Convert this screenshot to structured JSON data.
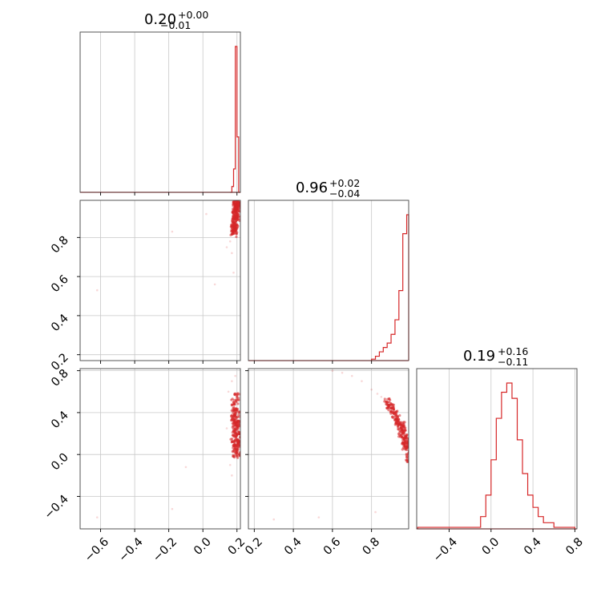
{
  "chart_data": {
    "type": "scatter",
    "subtype": "corner-plot",
    "parameters": 3,
    "color": "#d62728",
    "grid": true,
    "titles": [
      {
        "value": "0.20",
        "plus": "+0.00",
        "minus": "−0.01"
      },
      {
        "value": "0.96",
        "plus": "+0.02",
        "minus": "−0.04"
      },
      {
        "value": "0.19",
        "plus": "+0.16",
        "minus": "−0.11"
      }
    ],
    "ranges": [
      [
        -0.72,
        0.22
      ],
      [
        0.17,
        0.99
      ],
      [
        -0.71,
        0.82
      ]
    ],
    "ticks": [
      {
        "values": [
          -0.6,
          -0.4,
          -0.2,
          0.0,
          0.2
        ],
        "labels": [
          "−0.6",
          "−0.4",
          "−0.2",
          "0.0",
          "0.2"
        ]
      },
      {
        "values": [
          0.2,
          0.4,
          0.6,
          0.8
        ],
        "labels": [
          "0.2",
          "0.4",
          "0.6",
          "0.8"
        ]
      },
      {
        "values": [
          -0.4,
          0.0,
          0.4,
          0.8
        ],
        "labels": [
          "−0.4",
          "0.0",
          "0.4",
          "0.8"
        ]
      }
    ],
    "histograms": [
      {
        "bin_edges": [
          0.16,
          0.17,
          0.18,
          0.19,
          0.2,
          0.21,
          0.22
        ],
        "values": [
          0.0,
          0.04,
          0.16,
          1.0,
          0.38,
          0.0
        ]
      },
      {
        "bin_edges": [
          0.8,
          0.82,
          0.84,
          0.86,
          0.88,
          0.9,
          0.92,
          0.94,
          0.96,
          0.98,
          0.99
        ],
        "values": [
          0.01,
          0.03,
          0.06,
          0.09,
          0.12,
          0.18,
          0.28,
          0.48,
          0.87,
          1.0
        ]
      },
      {
        "bin_edges": [
          -0.7,
          -0.1,
          -0.05,
          0.0,
          0.05,
          0.1,
          0.15,
          0.2,
          0.25,
          0.3,
          0.35,
          0.4,
          0.45,
          0.5,
          0.6,
          0.8
        ],
        "values": [
          0.01,
          0.08,
          0.22,
          0.45,
          0.72,
          0.89,
          0.95,
          0.85,
          0.58,
          0.36,
          0.22,
          0.14,
          0.08,
          0.04,
          0.01
        ]
      }
    ],
    "scatter_panels": [
      {
        "x_param": 0,
        "y_param": 1,
        "dense": [
          [
            0.19,
            0.96
          ],
          [
            0.2,
            0.95
          ],
          [
            0.19,
            0.93
          ],
          [
            0.195,
            0.91
          ],
          [
            0.19,
            0.89
          ],
          [
            0.185,
            0.87
          ],
          [
            0.19,
            0.86
          ],
          [
            0.2,
            0.97
          ],
          [
            0.205,
            0.96
          ],
          [
            0.21,
            0.95
          ],
          [
            0.18,
            0.85
          ],
          [
            0.185,
            0.84
          ],
          [
            0.19,
            0.92
          ],
          [
            0.2,
            0.94
          ],
          [
            0.195,
            0.98
          ],
          [
            0.18,
            0.83
          ],
          [
            0.19,
            0.88
          ],
          [
            0.2,
            0.9
          ],
          [
            0.21,
            0.97
          ],
          [
            0.185,
            0.82
          ]
        ],
        "sparse": [
          [
            0.17,
            0.72
          ],
          [
            0.18,
            0.62
          ],
          [
            0.16,
            0.78
          ],
          [
            0.07,
            0.56
          ],
          [
            -0.18,
            0.83
          ],
          [
            -0.62,
            0.53
          ],
          [
            0.02,
            0.92
          ],
          [
            0.14,
            0.75
          ]
        ]
      },
      {
        "x_param": 0,
        "y_param": 2,
        "dense": [
          [
            0.19,
            0.45
          ],
          [
            0.18,
            0.35
          ],
          [
            0.2,
            0.28
          ],
          [
            0.19,
            0.2
          ],
          [
            0.2,
            0.12
          ],
          [
            0.19,
            0.05
          ],
          [
            0.185,
            0.4
          ],
          [
            0.21,
            0.3
          ],
          [
            0.2,
            0.22
          ],
          [
            0.18,
            0.15
          ],
          [
            0.2,
            0.08
          ],
          [
            0.19,
            0.0
          ],
          [
            0.2,
            0.38
          ],
          [
            0.21,
            0.18
          ],
          [
            0.19,
            0.25
          ],
          [
            0.18,
            0.5
          ],
          [
            0.2,
            0.55
          ],
          [
            0.195,
            0.1
          ],
          [
            0.21,
            0.02
          ],
          [
            0.19,
            0.32
          ]
        ],
        "sparse": [
          [
            0.17,
            0.7
          ],
          [
            0.19,
            0.75
          ],
          [
            0.15,
            0.6
          ],
          [
            0.16,
            -0.1
          ],
          [
            0.14,
            0.25
          ],
          [
            -0.1,
            -0.12
          ],
          [
            -0.18,
            -0.52
          ],
          [
            -0.62,
            -0.6
          ],
          [
            0.17,
            -0.2
          ]
        ]
      },
      {
        "x_param": 1,
        "y_param": 2,
        "dense": [
          [
            0.9,
            0.45
          ],
          [
            0.92,
            0.38
          ],
          [
            0.94,
            0.3
          ],
          [
            0.96,
            0.22
          ],
          [
            0.97,
            0.15
          ],
          [
            0.98,
            0.05
          ],
          [
            0.99,
            0.0
          ],
          [
            0.91,
            0.42
          ],
          [
            0.93,
            0.34
          ],
          [
            0.95,
            0.26
          ],
          [
            0.97,
            0.18
          ],
          [
            0.98,
            0.1
          ],
          [
            0.99,
            -0.05
          ],
          [
            0.88,
            0.5
          ],
          [
            0.89,
            0.47
          ],
          [
            0.95,
            0.2
          ],
          [
            0.96,
            0.28
          ],
          [
            0.98,
            0.12
          ],
          [
            0.93,
            0.3
          ],
          [
            0.97,
            0.08
          ]
        ],
        "sparse": [
          [
            0.7,
            0.75
          ],
          [
            0.75,
            0.7
          ],
          [
            0.8,
            0.62
          ],
          [
            0.85,
            0.55
          ],
          [
            0.65,
            0.78
          ],
          [
            0.6,
            0.8
          ],
          [
            0.83,
            0.58
          ],
          [
            0.53,
            -0.6
          ],
          [
            0.3,
            -0.62
          ],
          [
            0.82,
            -0.55
          ]
        ]
      }
    ]
  }
}
